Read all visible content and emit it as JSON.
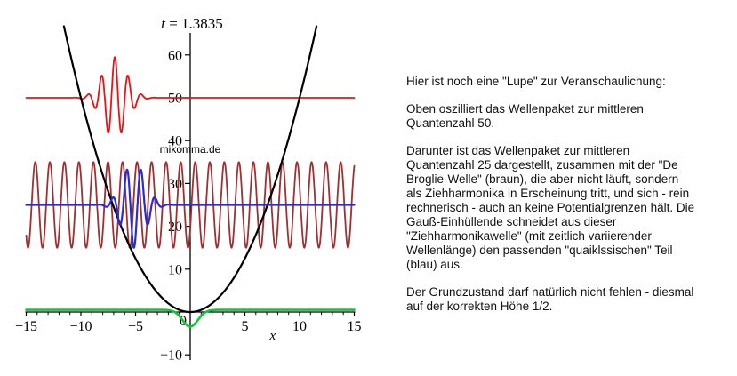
{
  "description": {
    "paragraphs": [
      "Hier ist noch eine \"Lupe\" zur Veranschaulichung:",
      "Oben oszilliert das Wellenpaket zur mittleren\nQuantenzahl 50.",
      "Darunter ist das Wellenpaket zur mittleren\nQuantenzahl 25 dargestellt, zusammen mit der \"De\nBroglie-Welle\" (braun), die aber nicht läuft, sondern\nals Ziehharmonika in Erscheinung tritt, und sich - rein\nrechnerisch - auch an keine Potentialgrenzen hält. Die\nGauß-Einhüllende schneidet aus dieser\n\"Ziehharmonikawelle\" (mit zeitlich variierender\nWellenlänge) den passenden \"quaiklssischen\" Teil\n(blau) aus.",
      "Der Grundzustand darf natürlich nicht fehlen - diesmal\nauf der korrekten Höhe 1/2."
    ]
  },
  "chart_data": {
    "type": "line",
    "title": {
      "var": "t",
      "value": "1.3835",
      "display": "t = 1.3835"
    },
    "watermark": "mikomma.de",
    "xlabel": "x",
    "xlim": [
      -15,
      15
    ],
    "ylim": [
      -13,
      66
    ],
    "grid": false,
    "legend": "none",
    "axis_color": "#000000",
    "background": "#ffffff",
    "x_ticks": [
      {
        "value": -15,
        "label": "−15"
      },
      {
        "value": -10,
        "label": "−10"
      },
      {
        "value": -5,
        "label": "−5"
      },
      {
        "value": 5,
        "label": "5"
      },
      {
        "value": 10,
        "label": "10"
      },
      {
        "value": 15,
        "label": "15"
      }
    ],
    "x_minor_step": 1,
    "origin_label": "0",
    "y_ticks": [
      {
        "value": -10,
        "label": "−10"
      },
      {
        "value": 10,
        "label": "10"
      },
      {
        "value": 20,
        "label": "20"
      },
      {
        "value": 30,
        "label": "30"
      },
      {
        "value": 40,
        "label": "40"
      },
      {
        "value": 50,
        "label": "50"
      },
      {
        "value": 60,
        "label": "60"
      }
    ],
    "series": [
      {
        "name": "wavepacket-n50",
        "type": "wavepacket",
        "color": "#ee1111",
        "stroke_width": 1.8,
        "baseline": 50,
        "energy_level": 50,
        "center": -6.9,
        "amplitude": 9.5,
        "sigma": 1.55,
        "wavelength": 1.22,
        "domain": [
          -15,
          15
        ]
      },
      {
        "name": "de-broglie-wave",
        "type": "cosine",
        "color": "#a12f2f",
        "stroke_width": 1.8,
        "baseline": 25,
        "amplitude": 10,
        "wavelength": 1.33,
        "peak_at": 0.46,
        "domain": [
          -15,
          15
        ]
      },
      {
        "name": "potential-parabola",
        "type": "parabola",
        "color": "#000000",
        "stroke_width": 2.2,
        "coefficient": 0.5,
        "domain": [
          -11.55,
          11.55
        ]
      },
      {
        "name": "wavepacket-n25",
        "type": "wavepacket",
        "color": "#2a2ad4",
        "stroke_width": 2.2,
        "baseline": 25,
        "energy_level": 25,
        "center": -5.15,
        "amplitude": -10,
        "sigma": 1.45,
        "wavelength": 1.3,
        "domain": [
          -15,
          15
        ]
      },
      {
        "name": "ground-state",
        "type": "gaussian",
        "color": "#12c53a",
        "stroke_width": 2.6,
        "baseline": 0.5,
        "energy_level": 0.5,
        "center": 0,
        "amplitude": -3.9,
        "sigma": 1.0,
        "domain": [
          -15,
          15
        ]
      }
    ]
  }
}
